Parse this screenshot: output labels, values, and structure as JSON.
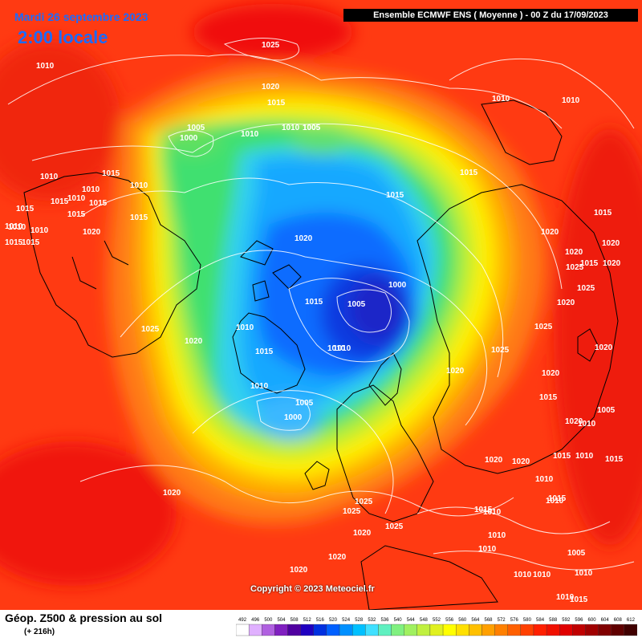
{
  "header": {
    "date": "Mardi 26 septembre 2023",
    "time": "2:00 locale",
    "model": "Ensemble ECMWF ENS  ( Moyenne )  -  00 Z du 17/09/2023"
  },
  "footer": {
    "title": "Géop. Z500 & pression au sol",
    "subtitle": "(+ 216h)",
    "copyright": "Copyright © 2023 Meteociel.fr"
  },
  "scale": {
    "ticks": [
      "492",
      "496",
      "500",
      "504",
      "508",
      "512",
      "516",
      "520",
      "524",
      "528",
      "532",
      "536",
      "540",
      "544",
      "548",
      "552",
      "556",
      "560",
      "564",
      "568",
      "572",
      "576",
      "580",
      "584",
      "588",
      "592",
      "596",
      "600",
      "604",
      "608",
      "612"
    ],
    "colors": [
      "#ffffff",
      "#e0b0ff",
      "#b060e0",
      "#8020c0",
      "#5000a0",
      "#2000c0",
      "#0030e0",
      "#0060ff",
      "#0090ff",
      "#00c0ff",
      "#40e0ff",
      "#60f0c0",
      "#80f080",
      "#a0f060",
      "#c0f040",
      "#e0f020",
      "#ffff00",
      "#ffe000",
      "#ffc000",
      "#ffa000",
      "#ff8000",
      "#ff6000",
      "#ff4000",
      "#ff2000",
      "#f01000",
      "#e00000",
      "#c00000",
      "#a00000",
      "#800000",
      "#600000",
      "#400000"
    ]
  },
  "pressure_labels": [
    "1025",
    "1020",
    "1015",
    "1010",
    "1005",
    "1000",
    "1010",
    "1010",
    "1015",
    "1010",
    "1015",
    "1010",
    "1015",
    "1010",
    "1010",
    "1015",
    "1015",
    "1010",
    "1020",
    "1015",
    "1015",
    "1010",
    "1015",
    "1005",
    "1005",
    "1010",
    "1015",
    "1020",
    "1020",
    "1020",
    "1025",
    "1015",
    "1010",
    "1000",
    "1005",
    "1010",
    "1015",
    "1010",
    "1005",
    "1000",
    "1010",
    "1020",
    "1025",
    "1025",
    "1025",
    "1025",
    "1020",
    "1020",
    "1020",
    "1025",
    "1020",
    "1025",
    "1020",
    "1015",
    "1015",
    "1010",
    "1010",
    "1005",
    "1020",
    "1020",
    "1015",
    "1010",
    "1010",
    "1005",
    "1010",
    "1010",
    "1010",
    "1015",
    "1015",
    "1025",
    "1020",
    "1020",
    "1020",
    "1020",
    "1020",
    "1020",
    "1015",
    "1015",
    "1015",
    "1010",
    "1010",
    "1010",
    "1010",
    "1010",
    "1010",
    "1015"
  ]
}
